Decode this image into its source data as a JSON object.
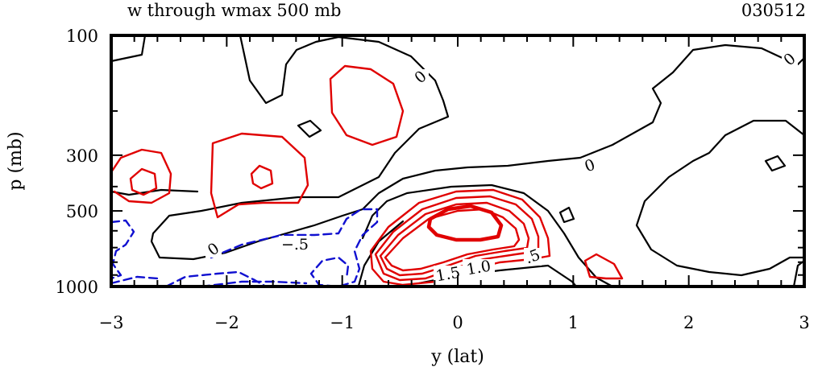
{
  "chart_data": {
    "type": "contour",
    "title": "w through wmax 500 mb",
    "date_label": "030512",
    "xlabel": "y (lat)",
    "ylabel": "p (mb)",
    "xlim": [
      -3,
      3
    ],
    "ylim": [
      100,
      1000
    ],
    "x_ticks": [
      "−3",
      "−2",
      "−1",
      "0",
      "1",
      "2",
      "3"
    ],
    "y_ticks": [
      "100",
      "300",
      "500",
      "1000"
    ],
    "contour_labels": [
      "0",
      "0",
      "0",
      "0",
      "−.5",
      ".5",
      "1.0",
      "1.5"
    ],
    "colors": {
      "positive": "#e00000",
      "zero": "#000000",
      "negative": "#1010d0"
    }
  }
}
